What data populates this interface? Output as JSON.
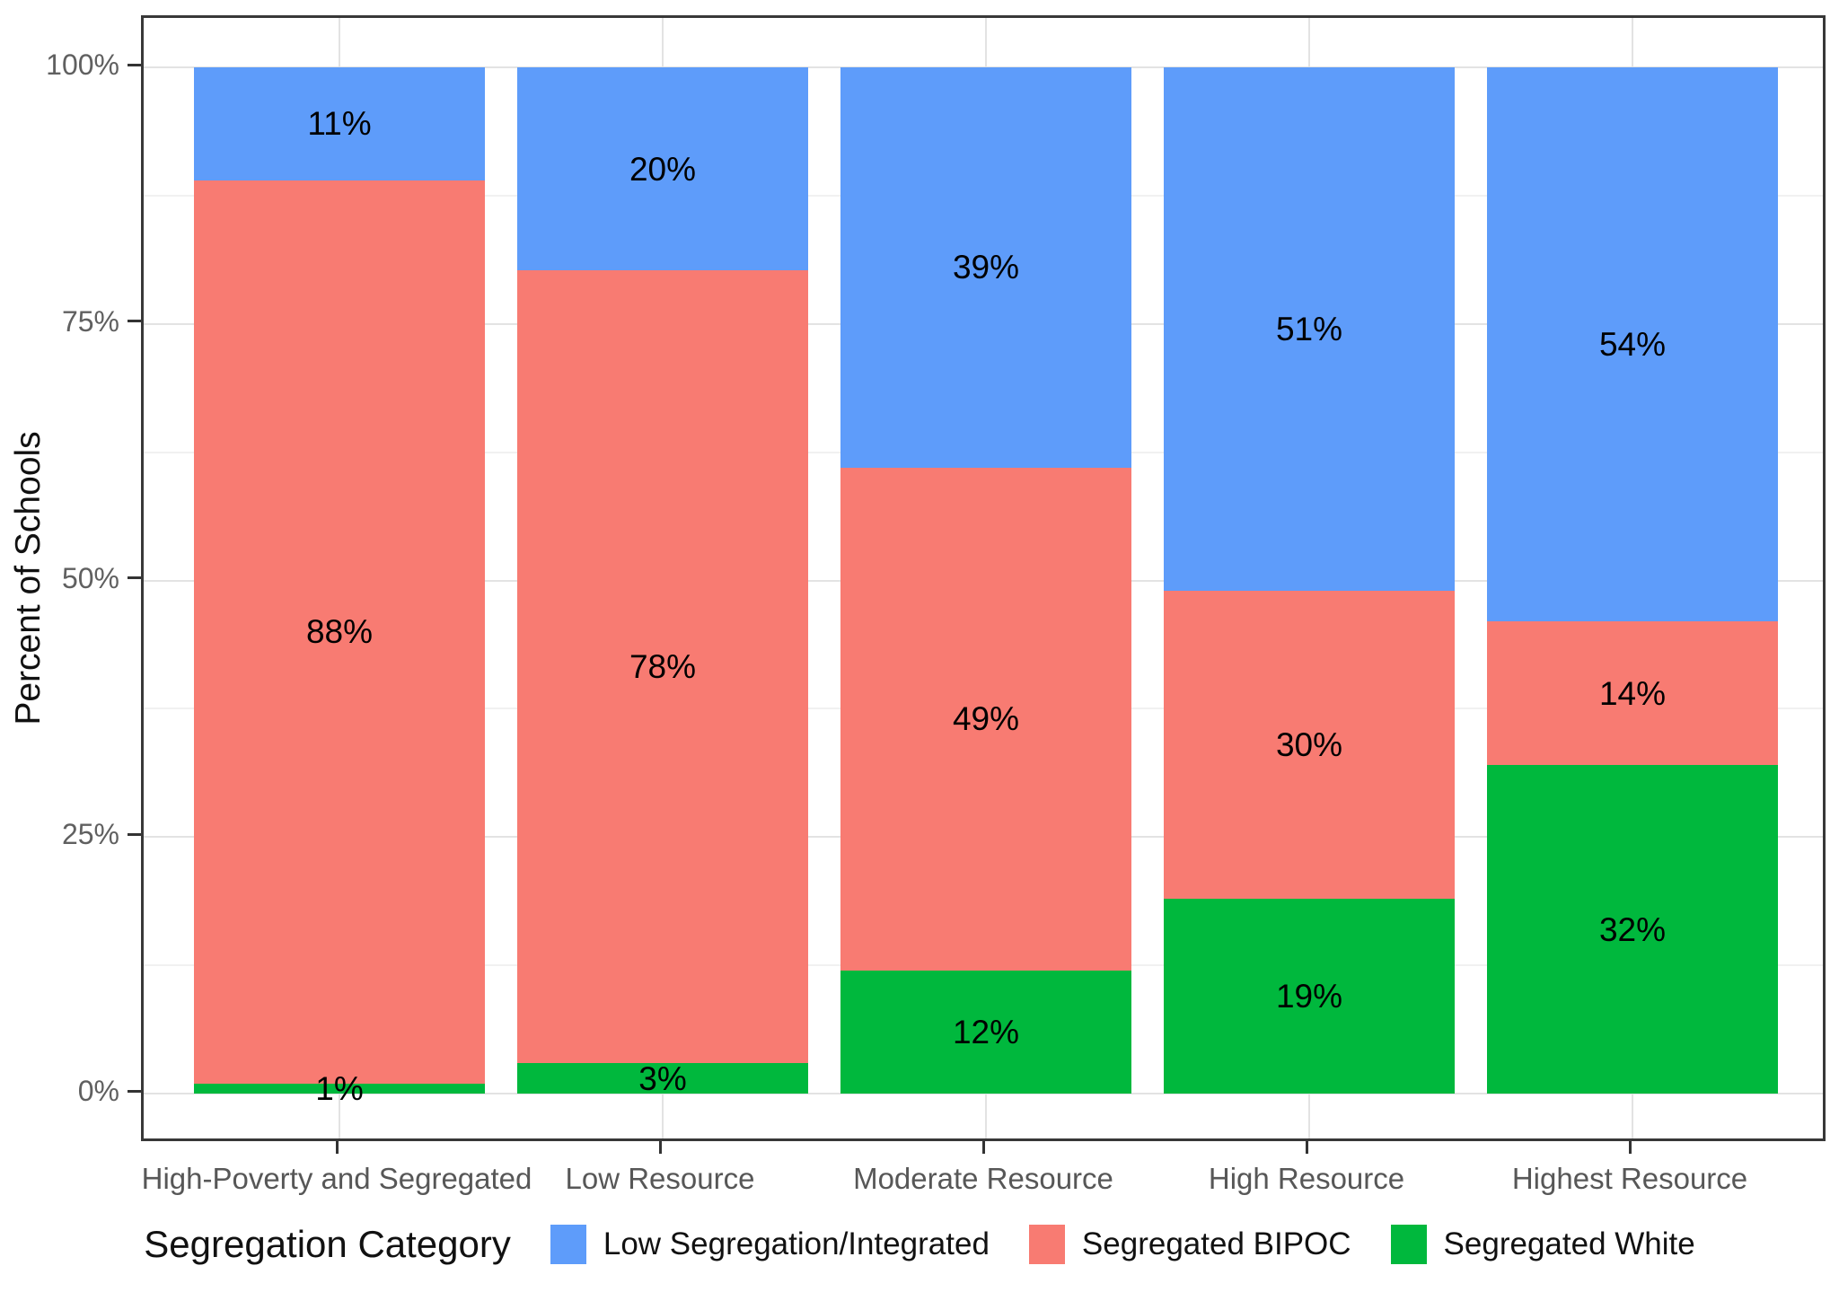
{
  "chart_data": {
    "type": "bar",
    "variant": "stacked-percent",
    "title": "",
    "xlabel": "",
    "ylabel": "Percent of Schools",
    "categories": [
      "High-Poverty and Segregated",
      "Low Resource",
      "Moderate Resource",
      "High Resource",
      "Highest Resource"
    ],
    "series": [
      {
        "name": "Segregated White",
        "color": "#00B83D",
        "values": [
          1,
          3,
          12,
          19,
          32
        ]
      },
      {
        "name": "Segregated BIPOC",
        "color": "#F87B72",
        "values": [
          88,
          78,
          49,
          30,
          14
        ]
      },
      {
        "name": "Low Segregation/Integrated",
        "color": "#5E9CFA",
        "values": [
          11,
          20,
          39,
          51,
          54
        ]
      }
    ],
    "stack_order": "first-series-at-bottom",
    "value_label_suffix": "%",
    "ylim": [
      0,
      100
    ],
    "y_ticks": [
      {
        "value": 0,
        "label": "0%"
      },
      {
        "value": 25,
        "label": "25%"
      },
      {
        "value": 50,
        "label": "50%"
      },
      {
        "value": 75,
        "label": "75%"
      },
      {
        "value": 100,
        "label": "100%"
      }
    ],
    "y_minor_ticks": [
      12.5,
      37.5,
      62.5,
      87.5
    ],
    "grid": {
      "horizontal": "major and minor lines",
      "vertical": "major lines at category centers"
    },
    "legend_position": "bottom"
  },
  "legend": {
    "title": "Segregation Category",
    "items": [
      {
        "label": "Low Segregation/Integrated",
        "color": "#5E9CFA"
      },
      {
        "label": "Segregated BIPOC",
        "color": "#F87B72"
      },
      {
        "label": "Segregated White",
        "color": "#00B83D"
      }
    ]
  },
  "colors": {
    "background": "#FFFFFF",
    "panel_border": "#383838",
    "grid_major": "#E3E3E3",
    "grid_minor": "#F1F1F1",
    "tick_mark": "#333333",
    "axis_text": "#606060",
    "value_label_text": "#000000"
  }
}
